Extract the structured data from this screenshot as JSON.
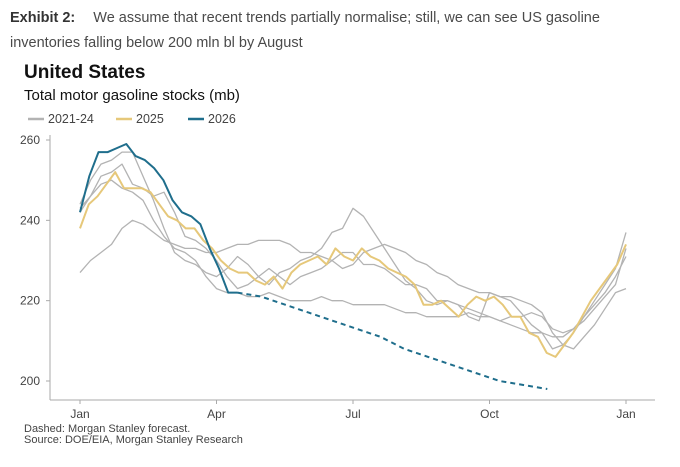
{
  "exhibit": {
    "label": "Exhibit 2:",
    "text": "We assume that recent trends partially normalise; still, we can see US gasoline inventories falling below 200 mln bl by August"
  },
  "chart_data": {
    "type": "line",
    "title": "United States",
    "subtitle": "Total motor gasoline stocks (mb)",
    "ylim": [
      195,
      262
    ],
    "yticks": [
      200,
      220,
      240,
      260
    ],
    "xticks": [
      "Jan",
      "Apr",
      "Jul",
      "Oct",
      "Jan"
    ],
    "xtick_weeks": [
      1,
      14,
      27,
      40,
      53
    ],
    "grid": false,
    "legend_position": "top-left",
    "legend": [
      "2021-24",
      "2025",
      "2026"
    ],
    "colors": {
      "history": "#b3b3b3",
      "y2025": "#e6c87a",
      "y2026": "#1f6e8c",
      "axis": "#aaaaaa",
      "text": "#444444"
    },
    "series": [
      {
        "name": "2021-24",
        "group": "history",
        "y": [
          242,
          246,
          249,
          250,
          248,
          247,
          245,
          240,
          236,
          233,
          232,
          230,
          226,
          223,
          222,
          222,
          221,
          221,
          222,
          221,
          220,
          220,
          220,
          221,
          220,
          220,
          219,
          219,
          219,
          219,
          218,
          217,
          217,
          216,
          216,
          216,
          216,
          217,
          216,
          216,
          215,
          214,
          213,
          212,
          212,
          211,
          211,
          213,
          216,
          219,
          222,
          226,
          231
        ]
      },
      {
        "name": "2021-24",
        "group": "history",
        "y": [
          227,
          230,
          232,
          234,
          238,
          240,
          239,
          237,
          235,
          234,
          233,
          233,
          232,
          232,
          233,
          234,
          234,
          235,
          235,
          235,
          234,
          232,
          232,
          231,
          230,
          228,
          229,
          232,
          233,
          234,
          233,
          232,
          230,
          229,
          227,
          226,
          224,
          223,
          222,
          222,
          221,
          221,
          220,
          219,
          217,
          212,
          209,
          208,
          211,
          214,
          218,
          222,
          223
        ]
      },
      {
        "name": "2021-24",
        "group": "history",
        "y": [
          243,
          246,
          251,
          252,
          254,
          249,
          248,
          246,
          247,
          242,
          236,
          235,
          233,
          230,
          226,
          223,
          224,
          226,
          228,
          226,
          224,
          226,
          227,
          228,
          230,
          232,
          232,
          229,
          229,
          228,
          226,
          224,
          224,
          223,
          220,
          220,
          219,
          218,
          217,
          216,
          215,
          216,
          216,
          217,
          216,
          213,
          212,
          213,
          215,
          218,
          221,
          224,
          233
        ]
      },
      {
        "name": "2021-24",
        "group": "history",
        "y": [
          244,
          250,
          254,
          255,
          257,
          257,
          251,
          245,
          238,
          232,
          230,
          229,
          227,
          226,
          228,
          231,
          229,
          226,
          224,
          227,
          228,
          230,
          231,
          233,
          237,
          238,
          243,
          241,
          237,
          233,
          229,
          225,
          223,
          220,
          219,
          220,
          219,
          216,
          215,
          222,
          221,
          220,
          217,
          214,
          212,
          208,
          209,
          212,
          216,
          220,
          224,
          228,
          237
        ]
      },
      {
        "name": "2025",
        "group": "y2025",
        "y": [
          238,
          244,
          246,
          249,
          252,
          248,
          248,
          248,
          247,
          244,
          241,
          240,
          238,
          238,
          235,
          233,
          230,
          228,
          227,
          227,
          225,
          224,
          226,
          223,
          227,
          229,
          230,
          231,
          229,
          233,
          231,
          230,
          233,
          231,
          230,
          228,
          227,
          226,
          224,
          219,
          219,
          220,
          218,
          216,
          219,
          221,
          220,
          221,
          219,
          216,
          216,
          212,
          211,
          207,
          206,
          209,
          212,
          216,
          220,
          223,
          226,
          229,
          234
        ]
      },
      {
        "name": "2026",
        "group": "y2026",
        "y": [
          242,
          251,
          257,
          257,
          258,
          259,
          256,
          255,
          253,
          250,
          245,
          242,
          241,
          239,
          233,
          228,
          222,
          222
        ]
      },
      {
        "name": "2026",
        "group": "y2026",
        "dashed": true,
        "y": [
          222,
          221,
          219,
          217,
          215,
          213,
          211,
          208,
          206,
          204,
          202,
          200,
          199,
          198
        ]
      }
    ],
    "series_start_week": [
      1,
      1,
      1,
      1,
      1,
      1,
      16
    ]
  },
  "footnotes": {
    "dashed": "Dashed: Morgan Stanley forecast.",
    "source": "Source: DOE/EIA, Morgan Stanley Research"
  }
}
